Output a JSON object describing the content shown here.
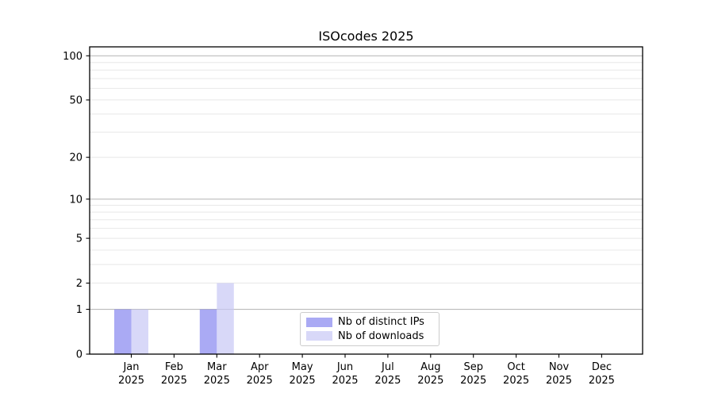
{
  "chart_data": {
    "type": "bar",
    "title": "ISOcodes 2025",
    "xlabel": "",
    "ylabel": "",
    "categories": [
      "Jan",
      "Feb",
      "Mar",
      "Apr",
      "May",
      "Jun",
      "Jul",
      "Aug",
      "Sep",
      "Oct",
      "Nov",
      "Dec"
    ],
    "year_line": "2025",
    "series": [
      {
        "name": "Nb of distinct IPs",
        "color": "rgba(134,134,240,0.7)",
        "values": [
          1,
          0,
          1,
          0,
          0,
          0,
          0,
          0,
          0,
          0,
          0,
          0
        ]
      },
      {
        "name": "Nb of downloads",
        "color": "rgba(200,200,245,0.7)",
        "values": [
          1,
          0,
          2,
          0,
          0,
          0,
          0,
          0,
          0,
          0,
          0,
          0
        ]
      }
    ],
    "yscale": "log1p",
    "ylim": [
      0,
      115
    ],
    "yticks": [
      0,
      1,
      2,
      5,
      10,
      20,
      50,
      100
    ],
    "major_gridlines": [
      1,
      10,
      100
    ],
    "minor_gridlines": [
      2,
      3,
      4,
      5,
      6,
      7,
      8,
      9,
      20,
      30,
      40,
      50,
      60,
      70,
      80,
      90
    ],
    "grid": {
      "major_color": "#bbbbbb",
      "minor_color": "#e8e8e8"
    },
    "frame_color": "#000000",
    "legend_position": "lower center"
  }
}
